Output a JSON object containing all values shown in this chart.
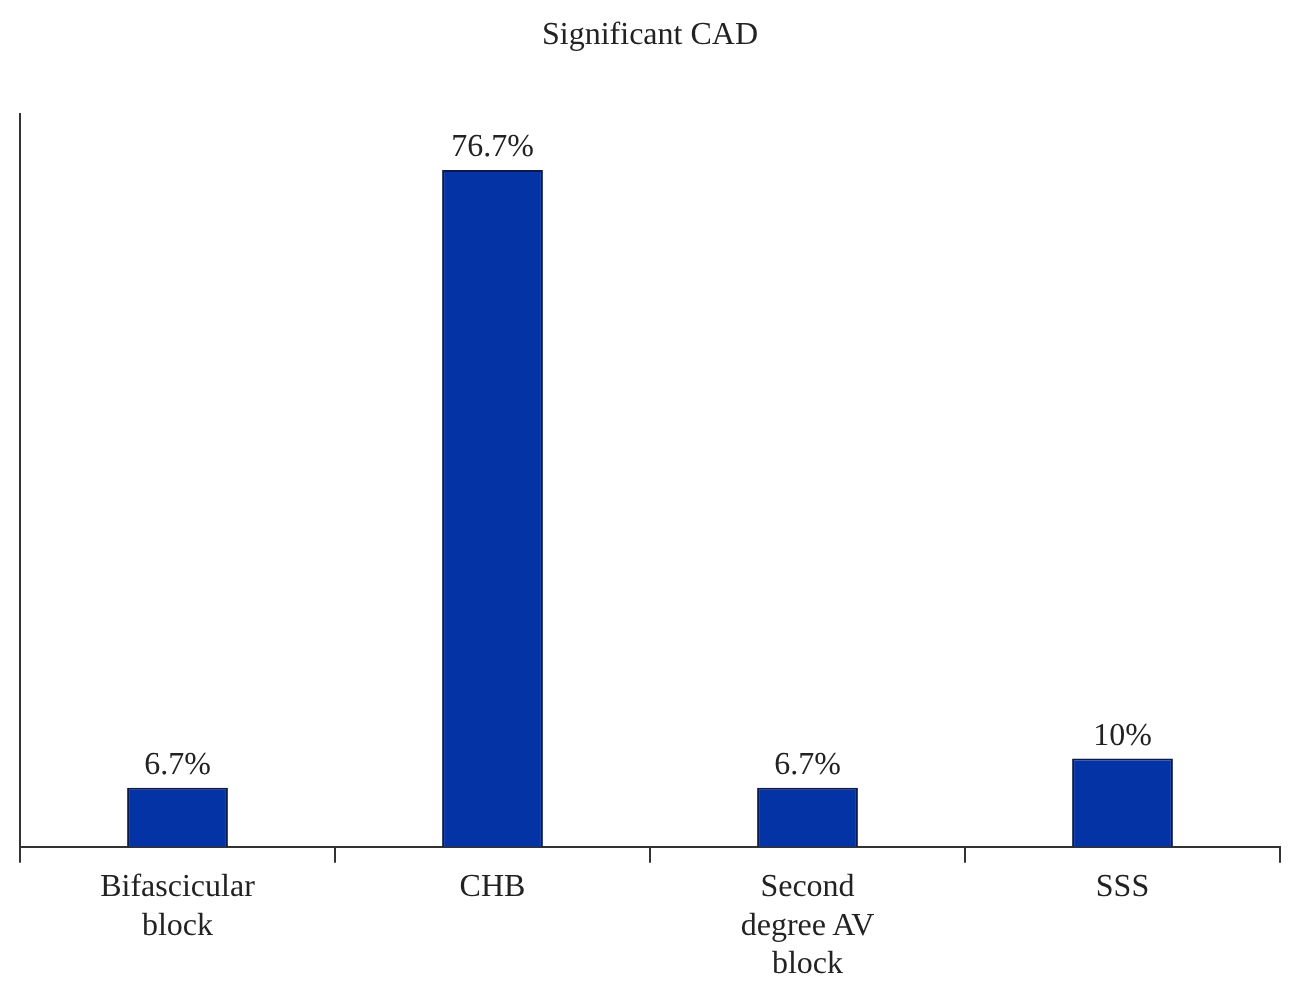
{
  "chart_data": {
    "type": "bar",
    "title": "Significant CAD",
    "categories": [
      "Bifascicular block",
      "CHB",
      "Second degree AV block",
      "SSS"
    ],
    "values": [
      6.7,
      76.7,
      6.7,
      10
    ],
    "value_labels": [
      "6.7%",
      "76.7%",
      "6.7%",
      "10%"
    ],
    "color": "#0433a6",
    "ylim": [
      0,
      83
    ],
    "grid": false,
    "legend": false
  }
}
